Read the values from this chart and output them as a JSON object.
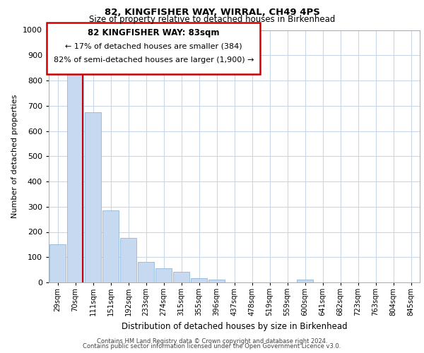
{
  "title": "82, KINGFISHER WAY, WIRRAL, CH49 4PS",
  "subtitle": "Size of property relative to detached houses in Birkenhead",
  "xlabel": "Distribution of detached houses by size in Birkenhead",
  "ylabel": "Number of detached properties",
  "categories": [
    "29sqm",
    "70sqm",
    "111sqm",
    "151sqm",
    "192sqm",
    "233sqm",
    "274sqm",
    "315sqm",
    "355sqm",
    "396sqm",
    "437sqm",
    "478sqm",
    "519sqm",
    "559sqm",
    "600sqm",
    "641sqm",
    "682sqm",
    "723sqm",
    "763sqm",
    "804sqm",
    "845sqm"
  ],
  "values": [
    150,
    825,
    675,
    285,
    175,
    80,
    55,
    42,
    18,
    10,
    0,
    0,
    0,
    0,
    10,
    0,
    0,
    0,
    0,
    0,
    0
  ],
  "bar_color": "#c6d9f0",
  "bar_edge_color": "#8fb8d8",
  "vline_x": 1.42,
  "vline_color": "#cc0000",
  "ylim": [
    0,
    1000
  ],
  "yticks": [
    0,
    100,
    200,
    300,
    400,
    500,
    600,
    700,
    800,
    900,
    1000
  ],
  "annotation_title": "82 KINGFISHER WAY: 83sqm",
  "annotation_line1": "← 17% of detached houses are smaller (384)",
  "annotation_line2": "82% of semi-detached houses are larger (1,900) →",
  "footer_line1": "Contains HM Land Registry data © Crown copyright and database right 2024.",
  "footer_line2": "Contains public sector information licensed under the Open Government Licence v3.0.",
  "background_color": "#ffffff",
  "grid_color": "#c8d8e8"
}
